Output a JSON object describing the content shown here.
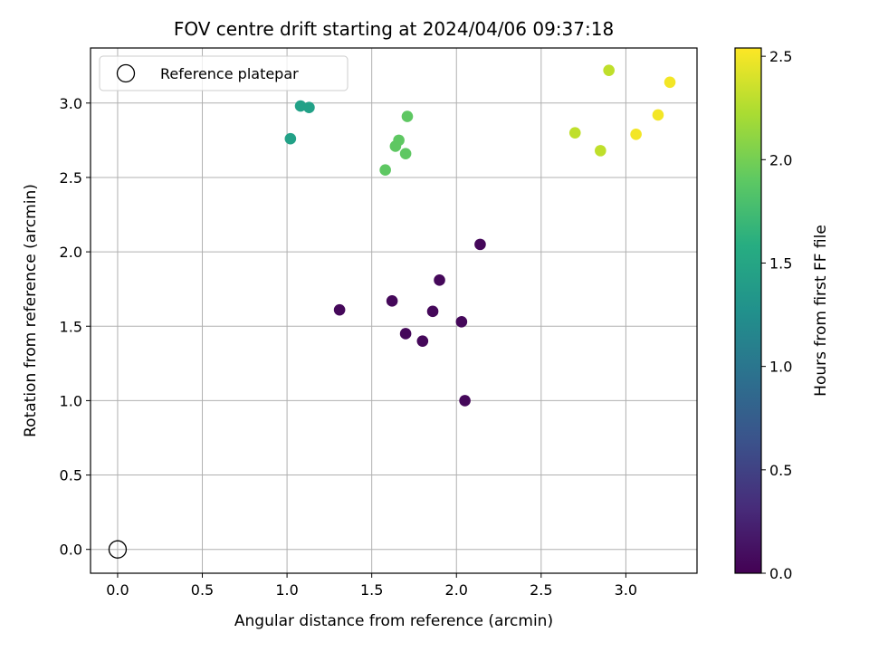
{
  "chart_data": {
    "type": "scatter",
    "title": "FOV centre drift starting at 2024/04/06 09:37:18",
    "xlabel": "Angular distance from reference (arcmin)",
    "ylabel": "Rotation from reference (arcmin)",
    "xlim": [
      -0.16,
      3.42
    ],
    "ylim": [
      -0.16,
      3.37
    ],
    "xticks": [
      0.0,
      0.5,
      1.0,
      1.5,
      2.0,
      2.5,
      3.0
    ],
    "xtick_labels": [
      "0.0",
      "0.5",
      "1.0",
      "1.5",
      "2.0",
      "2.5",
      "3.0"
    ],
    "yticks": [
      0.0,
      0.5,
      1.0,
      1.5,
      2.0,
      2.5,
      3.0
    ],
    "ytick_labels": [
      "0.0",
      "0.5",
      "1.0",
      "1.5",
      "2.0",
      "2.5",
      "3.0"
    ],
    "grid": true,
    "legend": {
      "placement": "top-left",
      "entries": [
        "Reference platepar"
      ]
    },
    "reference_point": {
      "x": 0.0,
      "y": 0.0
    },
    "colorbar": {
      "label": "Hours from first FF file",
      "range": [
        0.0,
        2.54
      ],
      "ticks": [
        0.0,
        0.5,
        1.0,
        1.5,
        2.0,
        2.5
      ],
      "tick_labels": [
        "0.0",
        "0.5",
        "1.0",
        "1.5",
        "2.0",
        "2.5"
      ],
      "colormap": "viridis"
    },
    "points": [
      {
        "x": 1.31,
        "y": 1.61,
        "hours": 0.05
      },
      {
        "x": 1.62,
        "y": 1.67,
        "hours": 0.05
      },
      {
        "x": 1.7,
        "y": 1.45,
        "hours": 0.05
      },
      {
        "x": 1.8,
        "y": 1.4,
        "hours": 0.05
      },
      {
        "x": 1.86,
        "y": 1.6,
        "hours": 0.05
      },
      {
        "x": 1.9,
        "y": 1.81,
        "hours": 0.05
      },
      {
        "x": 2.03,
        "y": 1.53,
        "hours": 0.05
      },
      {
        "x": 2.05,
        "y": 1.0,
        "hours": 0.05
      },
      {
        "x": 2.14,
        "y": 2.05,
        "hours": 0.05
      },
      {
        "x": 1.02,
        "y": 2.76,
        "hours": 1.45
      },
      {
        "x": 1.08,
        "y": 2.98,
        "hours": 1.45
      },
      {
        "x": 1.13,
        "y": 2.97,
        "hours": 1.45
      },
      {
        "x": 1.58,
        "y": 2.55,
        "hours": 1.9
      },
      {
        "x": 1.64,
        "y": 2.71,
        "hours": 1.9
      },
      {
        "x": 1.66,
        "y": 2.75,
        "hours": 1.9
      },
      {
        "x": 1.7,
        "y": 2.66,
        "hours": 1.9
      },
      {
        "x": 1.71,
        "y": 2.91,
        "hours": 1.9
      },
      {
        "x": 2.7,
        "y": 2.8,
        "hours": 2.3
      },
      {
        "x": 2.85,
        "y": 2.68,
        "hours": 2.3
      },
      {
        "x": 2.9,
        "y": 3.22,
        "hours": 2.3
      },
      {
        "x": 3.06,
        "y": 2.79,
        "hours": 2.5
      },
      {
        "x": 3.19,
        "y": 2.92,
        "hours": 2.5
      },
      {
        "x": 3.26,
        "y": 3.14,
        "hours": 2.5
      }
    ]
  }
}
